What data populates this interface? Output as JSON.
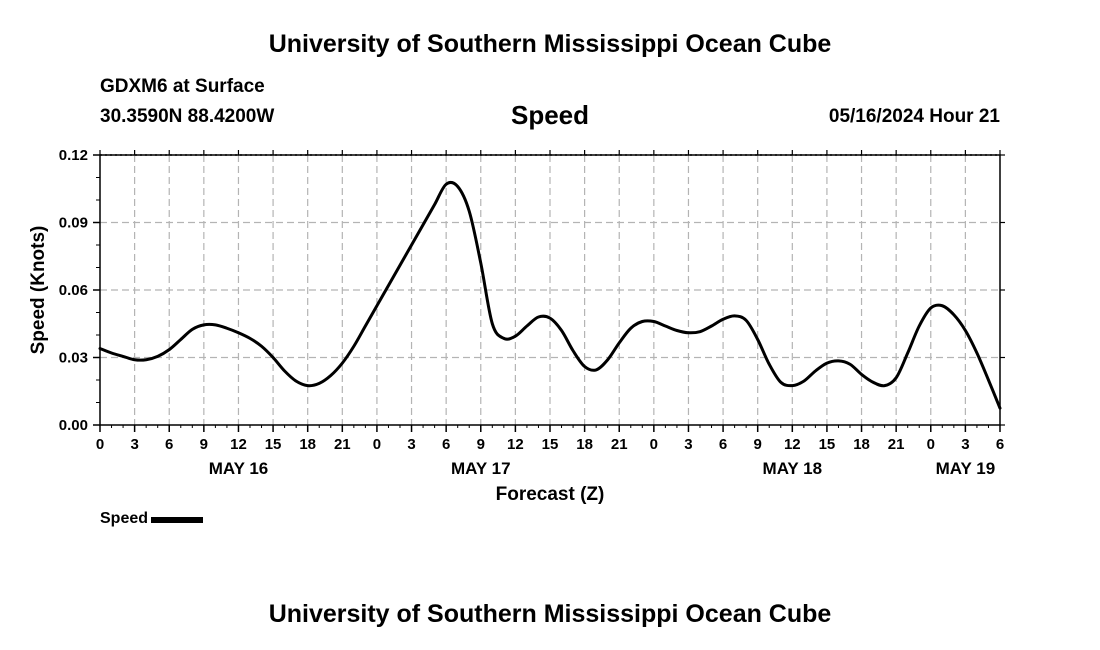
{
  "header": {
    "title": "University of Southern Mississippi Ocean Cube",
    "station": "GDXM6 at Surface",
    "coords": "30.3590N  88.4200W",
    "subtitle": "Speed",
    "datetime": "05/16/2024 Hour 21"
  },
  "footer": {
    "title": "University of Southern Mississippi Ocean Cube"
  },
  "legend": {
    "label": "Speed"
  },
  "chart_data": {
    "type": "line",
    "title": "Speed",
    "xlabel": "Forecast (Z)",
    "ylabel": "Speed (Knots)",
    "ylim": [
      0,
      0.12
    ],
    "yticks": [
      "0.00",
      "0.03",
      "0.06",
      "0.09",
      "0.12"
    ],
    "xlim": [
      0,
      78
    ],
    "xtick_labels": [
      "0",
      "3",
      "6",
      "9",
      "12",
      "15",
      "18",
      "21",
      "0",
      "3",
      "6",
      "9",
      "12",
      "15",
      "18",
      "21",
      "0",
      "3",
      "6",
      "9",
      "12",
      "15",
      "18",
      "21",
      "0",
      "3",
      "6"
    ],
    "date_labels": [
      {
        "label": "MAY 16",
        "hour": 12
      },
      {
        "label": "MAY 17",
        "hour": 33
      },
      {
        "label": "MAY 18",
        "hour": 60
      },
      {
        "label": "MAY 19",
        "hour": 75
      }
    ],
    "grid": true,
    "legend_position": "bottom-left",
    "series": [
      {
        "name": "Speed",
        "color": "#000000",
        "x": [
          0,
          1,
          2,
          3,
          4,
          5,
          6,
          7,
          8,
          9,
          10,
          11,
          12,
          13,
          14,
          15,
          16,
          17,
          18,
          19,
          20,
          21,
          22,
          23,
          24,
          25,
          26,
          27,
          28,
          29,
          30,
          31,
          32,
          33,
          34,
          35,
          36,
          37,
          38,
          39,
          40,
          41,
          42,
          43,
          44,
          45,
          46,
          47,
          48,
          49,
          50,
          51,
          52,
          53,
          54,
          55,
          56,
          57,
          58,
          59,
          60,
          61,
          62,
          63,
          64,
          65,
          66,
          67,
          68,
          69,
          70,
          71,
          72,
          73,
          74,
          75,
          76,
          77,
          78
        ],
        "values": [
          0.034,
          0.032,
          0.0305,
          0.029,
          0.029,
          0.0305,
          0.0335,
          0.038,
          0.0425,
          0.0445,
          0.0445,
          0.043,
          0.041,
          0.0385,
          0.035,
          0.03,
          0.024,
          0.0195,
          0.0175,
          0.0185,
          0.022,
          0.0275,
          0.035,
          0.044,
          0.053,
          0.062,
          0.071,
          0.08,
          0.089,
          0.098,
          0.107,
          0.106,
          0.095,
          0.072,
          0.045,
          0.0385,
          0.0395,
          0.044,
          0.048,
          0.0475,
          0.042,
          0.033,
          0.026,
          0.0245,
          0.029,
          0.0365,
          0.043,
          0.046,
          0.046,
          0.044,
          0.042,
          0.041,
          0.0415,
          0.044,
          0.047,
          0.0485,
          0.0465,
          0.038,
          0.027,
          0.019,
          0.0175,
          0.0195,
          0.024,
          0.0275,
          0.0285,
          0.027,
          0.0225,
          0.019,
          0.0175,
          0.021,
          0.032,
          0.044,
          0.052,
          0.053,
          0.049,
          0.042,
          0.032,
          0.02,
          0.0075
        ]
      }
    ]
  }
}
